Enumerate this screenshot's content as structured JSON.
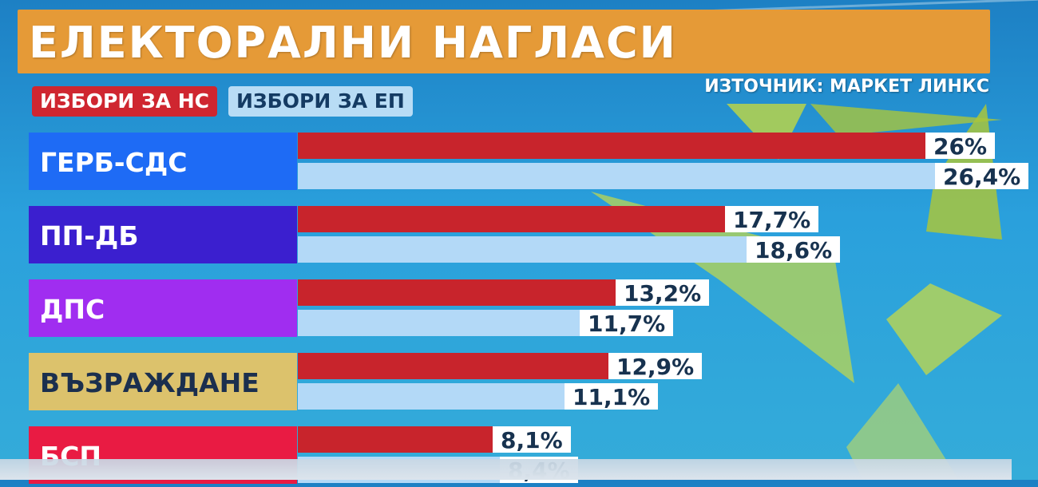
{
  "header": {
    "title": "ЕЛЕКТОРАЛНИ НАГЛАСИ",
    "source": "ИЗТОЧНИК: МАРКЕТ ЛИНКС"
  },
  "legend": {
    "ns_label": "ИЗБОРИ ЗА НС",
    "ep_label": "ИЗБОРИ ЗА ЕП"
  },
  "colors": {
    "ns": "#c8242c",
    "ep": "#b3d9f7",
    "title_bg": "#e59a37"
  },
  "chart_data": {
    "type": "bar",
    "orientation": "horizontal",
    "categories": [
      "ГЕРБ-СДС",
      "ПП-ДБ",
      "ДПС",
      "ВЪЗРАЖДАНЕ",
      "БСП"
    ],
    "category_colors": [
      "#1e6bf5",
      "#3b1fcf",
      "#a02df0",
      "#dcc26c",
      "#e91b43"
    ],
    "category_text_colors": [
      "#ffffff",
      "#ffffff",
      "#ffffff",
      "#1b2f4e",
      "#ffffff"
    ],
    "xlim": [
      0,
      28.6
    ],
    "series": [
      {
        "name": "ИЗБОРИ ЗА НС",
        "values": [
          26,
          17.7,
          13.2,
          12.9,
          8.1
        ],
        "labels": [
          "26%",
          "17,7%",
          "13,2%",
          "12,9%",
          "8,1%"
        ]
      },
      {
        "name": "ИЗБОРИ ЗА ЕП",
        "values": [
          26.4,
          18.6,
          11.7,
          11.1,
          8.4
        ],
        "labels": [
          "26,4%",
          "18,6%",
          "11,7%",
          "11,1%",
          "8,4%"
        ]
      }
    ]
  }
}
